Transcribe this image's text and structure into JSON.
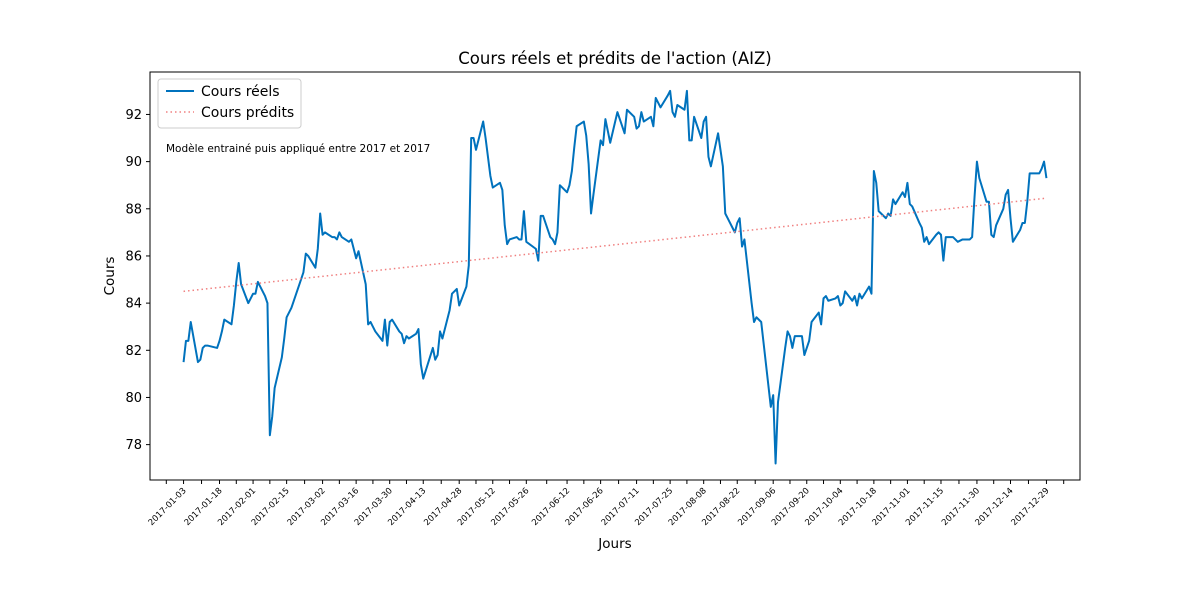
{
  "chart_data": {
    "type": "line",
    "title": "Cours réels et prédits de l'action (AIZ)",
    "xlabel": "Jours",
    "ylabel": "Cours",
    "annotation": "Modèle entrainé puis appliqué entre 2017 et 2017",
    "ylim": [
      76.5,
      93.8
    ],
    "yticks": [
      78,
      80,
      82,
      84,
      86,
      88,
      90,
      92
    ],
    "xlim": [
      "2016-12-20",
      "2018-01-12"
    ],
    "xtick_labels": [
      "2017-01-03",
      "2017-01-18",
      "2017-02-01",
      "2017-02-15",
      "2017-03-02",
      "2017-03-16",
      "2017-03-30",
      "2017-04-13",
      "2017-04-28",
      "2017-05-12",
      "2017-05-26",
      "2017-06-12",
      "2017-06-26",
      "2017-07-11",
      "2017-07-25",
      "2017-08-08",
      "2017-08-22",
      "2017-09-06",
      "2017-09-20",
      "2017-10-04",
      "2017-10-18",
      "2017-11-01",
      "2017-11-15",
      "2017-11-30",
      "2017-12-14",
      "2017-12-29"
    ],
    "grid": false,
    "legend_position": "upper-left",
    "series": [
      {
        "name": "Cours réels",
        "color": "#0072bd",
        "style": "solid",
        "points": [
          [
            "2017-01-03",
            81.5
          ],
          [
            "2017-01-04",
            82.4
          ],
          [
            "2017-01-05",
            82.4
          ],
          [
            "2017-01-06",
            83.2
          ],
          [
            "2017-01-09",
            81.5
          ],
          [
            "2017-01-10",
            81.6
          ],
          [
            "2017-01-11",
            82.1
          ],
          [
            "2017-01-12",
            82.2
          ],
          [
            "2017-01-13",
            82.2
          ],
          [
            "2017-01-17",
            82.1
          ],
          [
            "2017-01-18",
            82.4
          ],
          [
            "2017-01-19",
            82.8
          ],
          [
            "2017-01-20",
            83.3
          ],
          [
            "2017-01-23",
            83.1
          ],
          [
            "2017-01-24",
            83.9
          ],
          [
            "2017-01-25",
            84.9
          ],
          [
            "2017-01-26",
            85.7
          ],
          [
            "2017-01-27",
            84.8
          ],
          [
            "2017-01-30",
            84.0
          ],
          [
            "2017-01-31",
            84.2
          ],
          [
            "2017-02-01",
            84.4
          ],
          [
            "2017-02-02",
            84.4
          ],
          [
            "2017-02-03",
            84.9
          ],
          [
            "2017-02-06",
            84.3
          ],
          [
            "2017-02-07",
            84.0
          ],
          [
            "2017-02-08",
            78.4
          ],
          [
            "2017-02-09",
            79.2
          ],
          [
            "2017-02-10",
            80.4
          ],
          [
            "2017-02-13",
            81.7
          ],
          [
            "2017-02-14",
            82.5
          ],
          [
            "2017-02-15",
            83.4
          ],
          [
            "2017-02-16",
            83.6
          ],
          [
            "2017-02-17",
            83.8
          ],
          [
            "2017-02-21",
            85.0
          ],
          [
            "2017-02-22",
            85.3
          ],
          [
            "2017-02-23",
            86.1
          ],
          [
            "2017-02-24",
            86.0
          ],
          [
            "2017-02-27",
            85.5
          ],
          [
            "2017-02-28",
            86.3
          ],
          [
            "2017-03-01",
            87.8
          ],
          [
            "2017-03-02",
            86.9
          ],
          [
            "2017-03-03",
            87.0
          ],
          [
            "2017-03-06",
            86.8
          ],
          [
            "2017-03-07",
            86.8
          ],
          [
            "2017-03-08",
            86.7
          ],
          [
            "2017-03-09",
            87.0
          ],
          [
            "2017-03-10",
            86.8
          ],
          [
            "2017-03-13",
            86.6
          ],
          [
            "2017-03-14",
            86.7
          ],
          [
            "2017-03-15",
            86.3
          ],
          [
            "2017-03-16",
            85.9
          ],
          [
            "2017-03-17",
            86.2
          ],
          [
            "2017-03-20",
            84.8
          ],
          [
            "2017-03-21",
            83.1
          ],
          [
            "2017-03-22",
            83.2
          ],
          [
            "2017-03-23",
            83.0
          ],
          [
            "2017-03-24",
            82.8
          ],
          [
            "2017-03-27",
            82.4
          ],
          [
            "2017-03-28",
            83.3
          ],
          [
            "2017-03-29",
            82.2
          ],
          [
            "2017-03-30",
            83.2
          ],
          [
            "2017-03-31",
            83.3
          ],
          [
            "2017-04-03",
            82.8
          ],
          [
            "2017-04-04",
            82.7
          ],
          [
            "2017-04-05",
            82.3
          ],
          [
            "2017-04-06",
            82.6
          ],
          [
            "2017-04-07",
            82.5
          ],
          [
            "2017-04-10",
            82.7
          ],
          [
            "2017-04-11",
            82.9
          ],
          [
            "2017-04-12",
            81.4
          ],
          [
            "2017-04-13",
            80.8
          ],
          [
            "2017-04-17",
            82.1
          ],
          [
            "2017-04-18",
            81.6
          ],
          [
            "2017-04-19",
            81.8
          ],
          [
            "2017-04-20",
            82.8
          ],
          [
            "2017-04-21",
            82.5
          ],
          [
            "2017-04-24",
            83.7
          ],
          [
            "2017-04-25",
            84.4
          ],
          [
            "2017-04-26",
            84.5
          ],
          [
            "2017-04-27",
            84.6
          ],
          [
            "2017-04-28",
            83.9
          ],
          [
            "2017-05-01",
            84.7
          ],
          [
            "2017-05-02",
            85.6
          ],
          [
            "2017-05-03",
            91.0
          ],
          [
            "2017-05-04",
            91.0
          ],
          [
            "2017-05-05",
            90.5
          ],
          [
            "2017-05-08",
            91.7
          ],
          [
            "2017-05-09",
            91.0
          ],
          [
            "2017-05-10",
            90.2
          ],
          [
            "2017-05-11",
            89.4
          ],
          [
            "2017-05-12",
            88.9
          ],
          [
            "2017-05-15",
            89.1
          ],
          [
            "2017-05-16",
            88.8
          ],
          [
            "2017-05-17",
            87.3
          ],
          [
            "2017-05-18",
            86.5
          ],
          [
            "2017-05-19",
            86.7
          ],
          [
            "2017-05-22",
            86.8
          ],
          [
            "2017-05-23",
            86.7
          ],
          [
            "2017-05-24",
            86.7
          ],
          [
            "2017-05-25",
            87.9
          ],
          [
            "2017-05-26",
            86.6
          ],
          [
            "2017-05-30",
            86.3
          ],
          [
            "2017-05-31",
            85.8
          ],
          [
            "2017-06-01",
            87.7
          ],
          [
            "2017-06-02",
            87.7
          ],
          [
            "2017-06-05",
            86.8
          ],
          [
            "2017-06-06",
            86.7
          ],
          [
            "2017-06-07",
            86.5
          ],
          [
            "2017-06-08",
            87.0
          ],
          [
            "2017-06-09",
            89.0
          ],
          [
            "2017-06-12",
            88.7
          ],
          [
            "2017-06-13",
            89.0
          ],
          [
            "2017-06-14",
            89.6
          ],
          [
            "2017-06-15",
            90.6
          ],
          [
            "2017-06-16",
            91.5
          ],
          [
            "2017-06-19",
            91.7
          ],
          [
            "2017-06-20",
            91.1
          ],
          [
            "2017-06-21",
            89.9
          ],
          [
            "2017-06-22",
            87.8
          ],
          [
            "2017-06-23",
            88.6
          ],
          [
            "2017-06-26",
            90.9
          ],
          [
            "2017-06-27",
            90.7
          ],
          [
            "2017-06-28",
            91.8
          ],
          [
            "2017-06-29",
            91.3
          ],
          [
            "2017-06-30",
            90.8
          ],
          [
            "2017-07-03",
            92.1
          ],
          [
            "2017-07-05",
            91.5
          ],
          [
            "2017-07-06",
            91.2
          ],
          [
            "2017-07-07",
            92.2
          ],
          [
            "2017-07-10",
            91.9
          ],
          [
            "2017-07-11",
            91.4
          ],
          [
            "2017-07-12",
            91.5
          ],
          [
            "2017-07-13",
            92.1
          ],
          [
            "2017-07-14",
            91.7
          ],
          [
            "2017-07-17",
            91.9
          ],
          [
            "2017-07-18",
            91.5
          ],
          [
            "2017-07-19",
            92.7
          ],
          [
            "2017-07-20",
            92.5
          ],
          [
            "2017-07-21",
            92.3
          ],
          [
            "2017-07-24",
            92.8
          ],
          [
            "2017-07-25",
            93.0
          ],
          [
            "2017-07-26",
            92.1
          ],
          [
            "2017-07-27",
            91.9
          ],
          [
            "2017-07-28",
            92.4
          ],
          [
            "2017-07-31",
            92.2
          ],
          [
            "2017-08-01",
            93.0
          ],
          [
            "2017-08-02",
            90.9
          ],
          [
            "2017-08-03",
            90.9
          ],
          [
            "2017-08-04",
            91.9
          ],
          [
            "2017-08-07",
            91.0
          ],
          [
            "2017-08-08",
            91.7
          ],
          [
            "2017-08-09",
            91.9
          ],
          [
            "2017-08-10",
            90.2
          ],
          [
            "2017-08-11",
            89.8
          ],
          [
            "2017-08-14",
            91.2
          ],
          [
            "2017-08-15",
            90.5
          ],
          [
            "2017-08-16",
            89.8
          ],
          [
            "2017-08-17",
            87.8
          ],
          [
            "2017-08-18",
            87.6
          ],
          [
            "2017-08-21",
            87.0
          ],
          [
            "2017-08-22",
            87.4
          ],
          [
            "2017-08-23",
            87.6
          ],
          [
            "2017-08-24",
            86.4
          ],
          [
            "2017-08-25",
            86.7
          ],
          [
            "2017-08-28",
            84.0
          ],
          [
            "2017-08-29",
            83.2
          ],
          [
            "2017-08-30",
            83.4
          ],
          [
            "2017-08-31",
            83.3
          ],
          [
            "2017-09-01",
            83.2
          ],
          [
            "2017-09-05",
            79.6
          ],
          [
            "2017-09-06",
            80.1
          ],
          [
            "2017-09-07",
            77.2
          ],
          [
            "2017-09-08",
            79.8
          ],
          [
            "2017-09-11",
            82.1
          ],
          [
            "2017-09-12",
            82.8
          ],
          [
            "2017-09-13",
            82.6
          ],
          [
            "2017-09-14",
            82.1
          ],
          [
            "2017-09-15",
            82.6
          ],
          [
            "2017-09-18",
            82.6
          ],
          [
            "2017-09-19",
            81.8
          ],
          [
            "2017-09-20",
            82.1
          ],
          [
            "2017-09-21",
            82.4
          ],
          [
            "2017-09-22",
            83.2
          ],
          [
            "2017-09-25",
            83.6
          ],
          [
            "2017-09-26",
            83.1
          ],
          [
            "2017-09-27",
            84.2
          ],
          [
            "2017-09-28",
            84.3
          ],
          [
            "2017-09-29",
            84.1
          ],
          [
            "2017-10-02",
            84.2
          ],
          [
            "2017-10-03",
            84.3
          ],
          [
            "2017-10-04",
            83.9
          ],
          [
            "2017-10-05",
            84.0
          ],
          [
            "2017-10-06",
            84.5
          ],
          [
            "2017-10-09",
            84.1
          ],
          [
            "2017-10-10",
            84.3
          ],
          [
            "2017-10-11",
            83.9
          ],
          [
            "2017-10-12",
            84.4
          ],
          [
            "2017-10-13",
            84.2
          ],
          [
            "2017-10-16",
            84.7
          ],
          [
            "2017-10-17",
            84.4
          ],
          [
            "2017-10-18",
            89.6
          ],
          [
            "2017-10-19",
            89.1
          ],
          [
            "2017-10-20",
            87.9
          ],
          [
            "2017-10-23",
            87.6
          ],
          [
            "2017-10-24",
            87.8
          ],
          [
            "2017-10-25",
            87.7
          ],
          [
            "2017-10-26",
            88.4
          ],
          [
            "2017-10-27",
            88.2
          ],
          [
            "2017-10-30",
            88.7
          ],
          [
            "2017-10-31",
            88.5
          ],
          [
            "2017-11-01",
            89.1
          ],
          [
            "2017-11-02",
            88.2
          ],
          [
            "2017-11-03",
            88.1
          ],
          [
            "2017-11-06",
            87.4
          ],
          [
            "2017-11-07",
            87.2
          ],
          [
            "2017-11-08",
            86.6
          ],
          [
            "2017-11-09",
            86.8
          ],
          [
            "2017-11-10",
            86.5
          ],
          [
            "2017-11-13",
            86.9
          ],
          [
            "2017-11-14",
            87.0
          ],
          [
            "2017-11-15",
            86.9
          ],
          [
            "2017-11-16",
            85.8
          ],
          [
            "2017-11-17",
            86.8
          ],
          [
            "2017-11-20",
            86.8
          ],
          [
            "2017-11-21",
            86.7
          ],
          [
            "2017-11-22",
            86.6
          ],
          [
            "2017-11-24",
            86.7
          ],
          [
            "2017-11-27",
            86.7
          ],
          [
            "2017-11-28",
            86.8
          ],
          [
            "2017-11-29",
            88.5
          ],
          [
            "2017-11-30",
            90.0
          ],
          [
            "2017-12-01",
            89.3
          ],
          [
            "2017-12-04",
            88.3
          ],
          [
            "2017-12-05",
            88.3
          ],
          [
            "2017-12-06",
            86.9
          ],
          [
            "2017-12-07",
            86.8
          ],
          [
            "2017-12-08",
            87.3
          ],
          [
            "2017-12-11",
            88.0
          ],
          [
            "2017-12-12",
            88.6
          ],
          [
            "2017-12-13",
            88.8
          ],
          [
            "2017-12-14",
            87.6
          ],
          [
            "2017-12-15",
            86.6
          ],
          [
            "2017-12-18",
            87.1
          ],
          [
            "2017-12-19",
            87.4
          ],
          [
            "2017-12-20",
            87.4
          ],
          [
            "2017-12-21",
            88.3
          ],
          [
            "2017-12-22",
            89.5
          ],
          [
            "2017-12-26",
            89.5
          ],
          [
            "2017-12-27",
            89.7
          ],
          [
            "2017-12-28",
            90.0
          ],
          [
            "2017-12-29",
            89.3
          ]
        ]
      },
      {
        "name": "Cours prédits",
        "color": "#f08080",
        "style": "dotted",
        "points": [
          [
            "2017-01-03",
            84.5
          ],
          [
            "2017-12-29",
            88.45
          ]
        ]
      }
    ]
  }
}
